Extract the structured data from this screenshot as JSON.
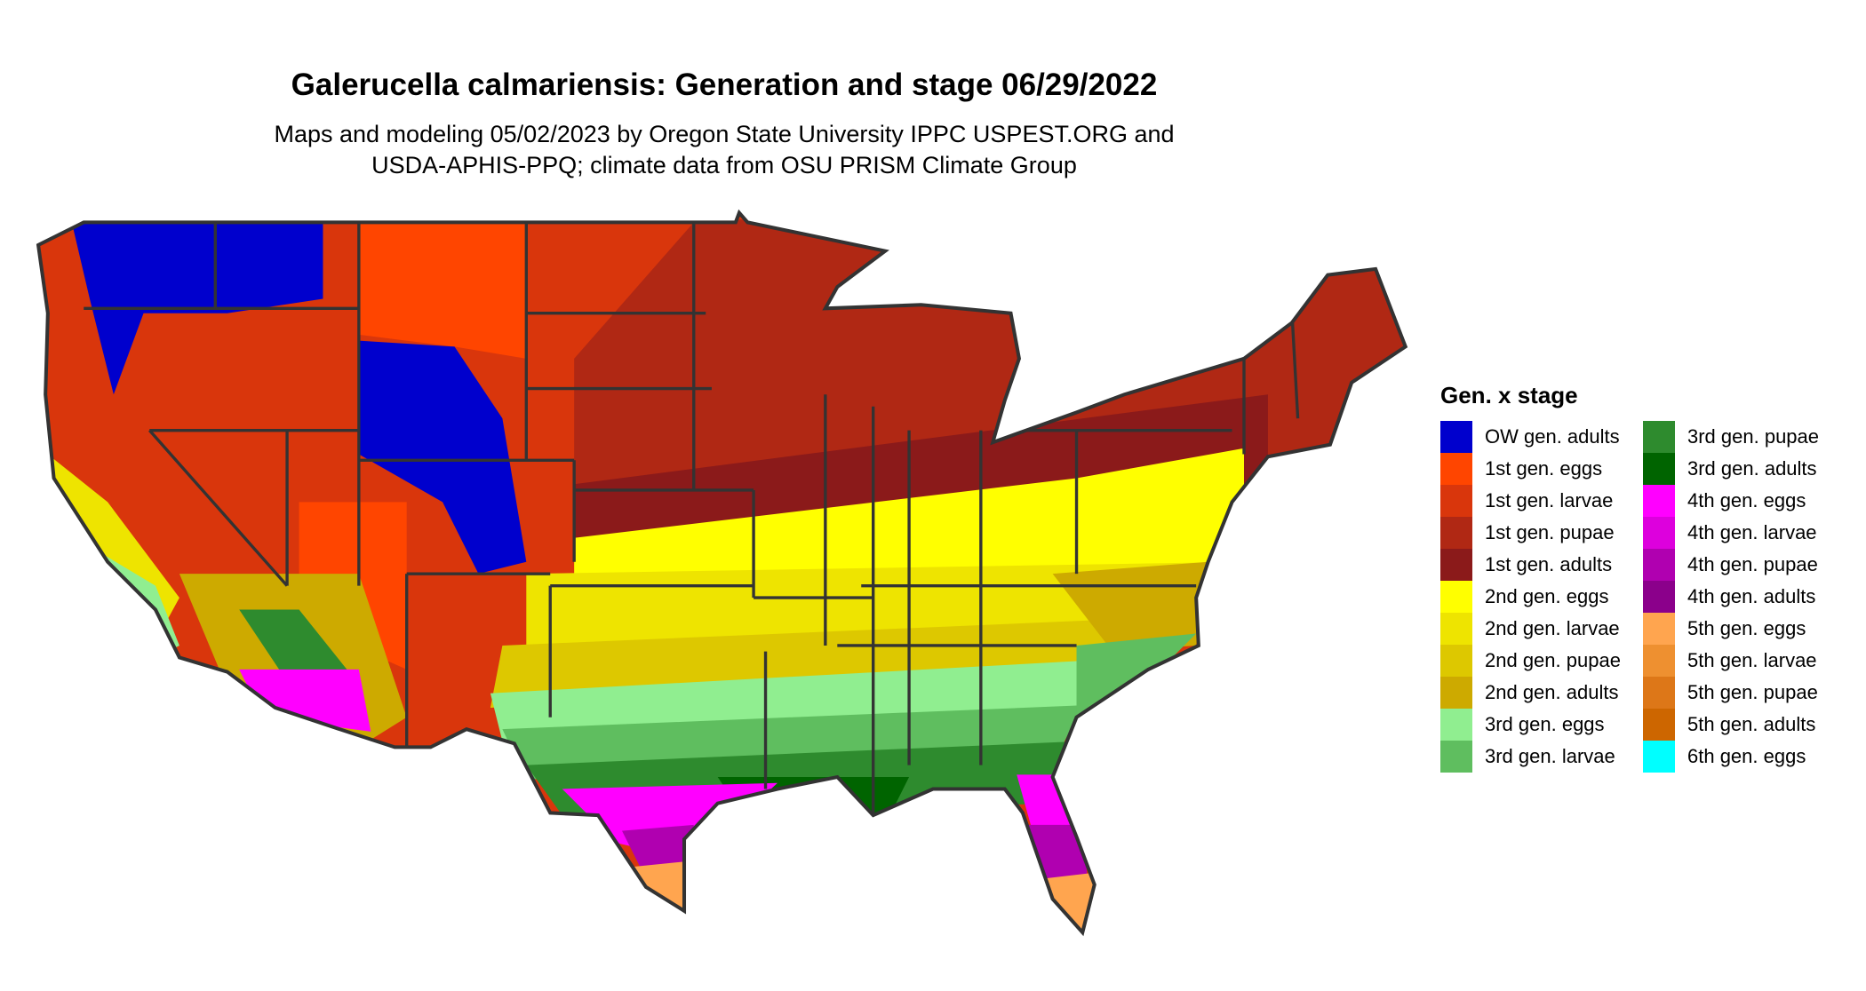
{
  "title": "Galerucella calmariensis: Generation and stage 06/29/2022",
  "subtitle_line1": "Maps and modeling 05/02/2023 by Oregon State University IPPC USPEST.ORG and",
  "subtitle_line2": "USDA-APHIS-PPQ; climate data from OSU PRISM Climate Group",
  "legend": {
    "title": "Gen. x stage",
    "items": [
      {
        "label": "OW gen. adults",
        "color": "#0000cd"
      },
      {
        "label": "1st gen. eggs",
        "color": "#ff4500"
      },
      {
        "label": "1st gen. larvae",
        "color": "#d9360c"
      },
      {
        "label": "1st gen. pupae",
        "color": "#b02814"
      },
      {
        "label": "1st gen. adults",
        "color": "#8b1a1a"
      },
      {
        "label": "2nd gen. eggs",
        "color": "#ffff00"
      },
      {
        "label": "2nd gen. larvae",
        "color": "#eee400"
      },
      {
        "label": "2nd gen. pupae",
        "color": "#ddc800"
      },
      {
        "label": "2nd gen. adults",
        "color": "#cdaa00"
      },
      {
        "label": "3rd gen. eggs",
        "color": "#90ee90"
      },
      {
        "label": "3rd gen. larvae",
        "color": "#5fbe5f"
      },
      {
        "label": "3rd gen. pupae",
        "color": "#2e8b2e"
      },
      {
        "label": "3rd gen. adults",
        "color": "#006400"
      },
      {
        "label": "4th gen. eggs",
        "color": "#ff00ff"
      },
      {
        "label": "4th gen. larvae",
        "color": "#dd00dd"
      },
      {
        "label": "4th gen. pupae",
        "color": "#b000b0"
      },
      {
        "label": "4th gen. adults",
        "color": "#8b008b"
      },
      {
        "label": "5th gen. eggs",
        "color": "#ffa54f"
      },
      {
        "label": "5th gen. larvae",
        "color": "#ee9030"
      },
      {
        "label": "5th gen. pupae",
        "color": "#dd7718"
      },
      {
        "label": "5th gen. adults",
        "color": "#cd6600"
      },
      {
        "label": "6th gen. eggs",
        "color": "#00ffff"
      }
    ]
  }
}
